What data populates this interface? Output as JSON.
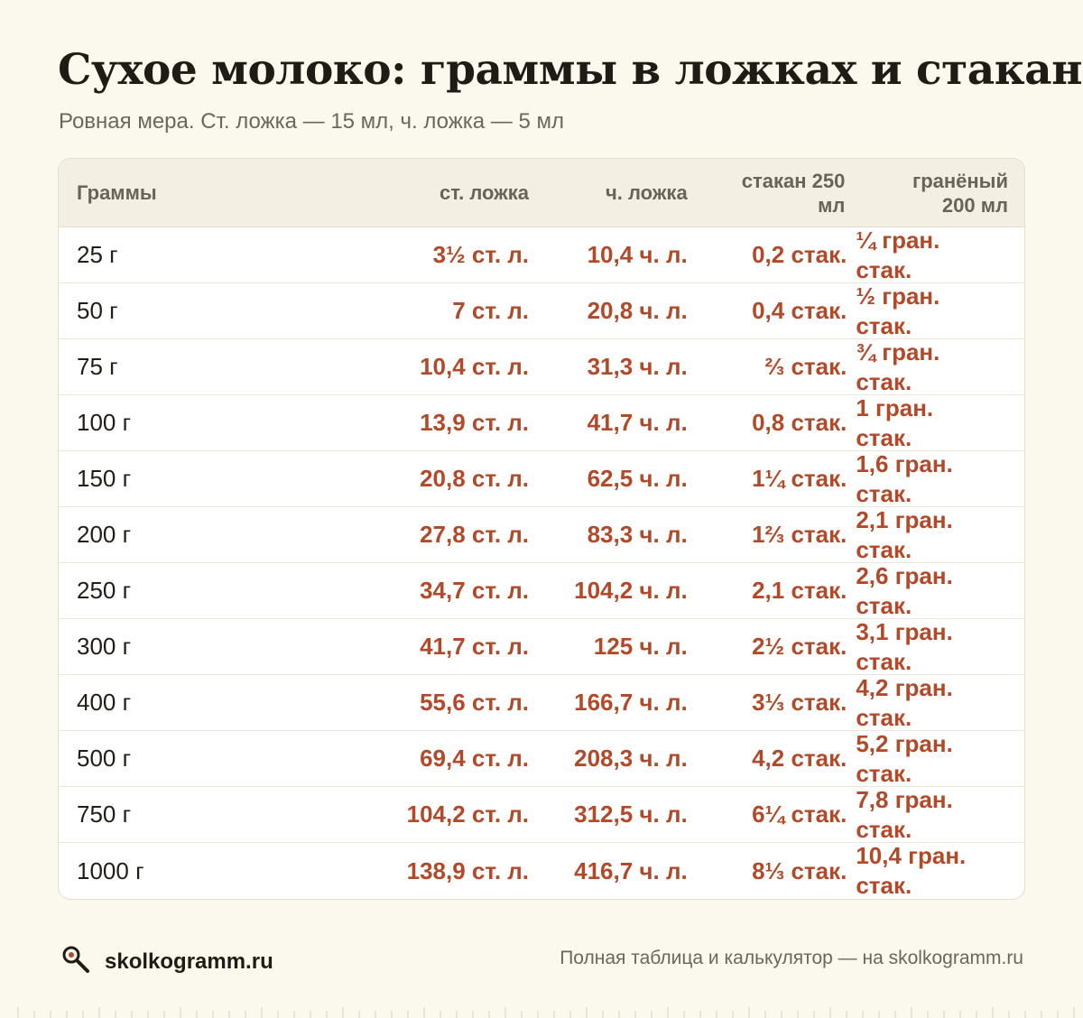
{
  "title": "Сухое молоко: граммы в ложках и стаканах",
  "subtitle": "Ровная мера. Ст. ложка — 15 мл, ч. ложка — 5 мл",
  "table": {
    "headers": [
      "Граммы",
      "ст. ложка",
      "ч. ложка",
      "стакан 250 мл",
      "гранёный 200 мл"
    ],
    "rows": [
      [
        "25 г",
        "3½ ст. л.",
        "10,4 ч. л.",
        "0,2 стак.",
        "¼ гран. стак."
      ],
      [
        "50 г",
        "7 ст. л.",
        "20,8 ч. л.",
        "0,4 стак.",
        "½ гран. стак."
      ],
      [
        "75 г",
        "10,4 ст. л.",
        "31,3 ч. л.",
        "⅔ стак.",
        "¾ гран. стак."
      ],
      [
        "100 г",
        "13,9 ст. л.",
        "41,7 ч. л.",
        "0,8 стак.",
        "1 гран. стак."
      ],
      [
        "150 г",
        "20,8 ст. л.",
        "62,5 ч. л.",
        "1¼ стак.",
        "1,6 гран. стак."
      ],
      [
        "200 г",
        "27,8 ст. л.",
        "83,3 ч. л.",
        "1⅔ стак.",
        "2,1 гран. стак."
      ],
      [
        "250 г",
        "34,7 ст. л.",
        "104,2 ч. л.",
        "2,1 стак.",
        "2,6 гран. стак."
      ],
      [
        "300 г",
        "41,7 ст. л.",
        "125 ч. л.",
        "2½ стак.",
        "3,1 гран. стак."
      ],
      [
        "400 г",
        "55,6 ст. л.",
        "166,7 ч. л.",
        "3⅓ стак.",
        "4,2 гран. стак."
      ],
      [
        "500 г",
        "69,4 ст. л.",
        "208,3 ч. л.",
        "4,2 стак.",
        "5,2 гран. стак."
      ],
      [
        "750 г",
        "104,2 ст. л.",
        "312,5 ч. л.",
        "6¼ стак.",
        "7,8 гран. стак."
      ],
      [
        "1000 г",
        "138,9 ст. л.",
        "416,7 ч. л.",
        "8⅓ стак.",
        "10,4 гран. стак."
      ]
    ]
  },
  "footer": {
    "brand": "skolkogramm.ru",
    "logo_icon": "magnifier-icon",
    "note": "Полная таблица и калькулятор — на skolkogramm.ru"
  },
  "colors": {
    "background": "#fbf8ee",
    "accent": "#b24a2a",
    "header_bg": "#f4efe3"
  }
}
